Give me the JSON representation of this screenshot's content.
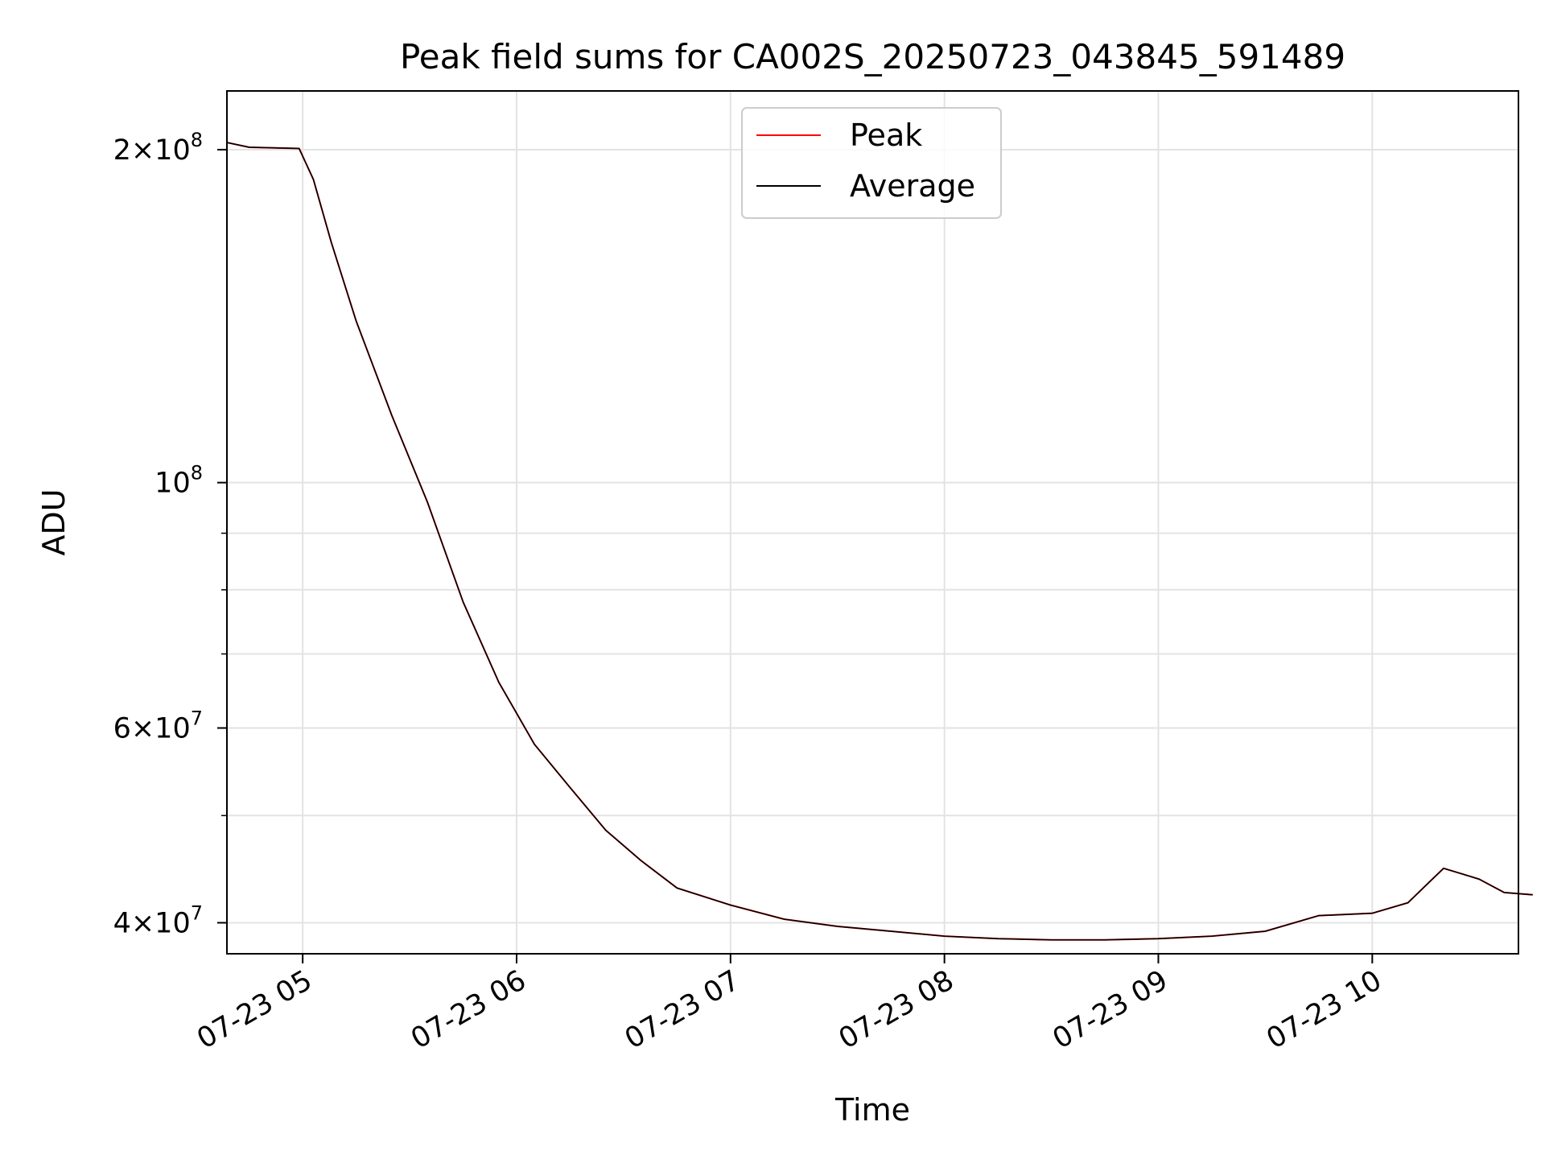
{
  "chart_data": {
    "type": "line",
    "title": "Peak field sums for CA002S_20250723_043845_591489",
    "xlabel": "Time",
    "ylabel": "ADU",
    "yscale": "log",
    "xlim": [
      "2025-07-23 04:38:45",
      "2025-07-23 10:41:00"
    ],
    "ylim": [
      37500000,
      226000000
    ],
    "grid": true,
    "legend_position": "top-center",
    "x_ticks": [
      {
        "t": "2025-07-23 05:00",
        "label": "07-23 05"
      },
      {
        "t": "2025-07-23 06:00",
        "label": "07-23 06"
      },
      {
        "t": "2025-07-23 07:00",
        "label": "07-23 07"
      },
      {
        "t": "2025-07-23 08:00",
        "label": "07-23 08"
      },
      {
        "t": "2025-07-23 09:00",
        "label": "07-23 09"
      },
      {
        "t": "2025-07-23 10:00",
        "label": "07-23 10"
      }
    ],
    "y_major_ticks": [
      {
        "value": 40000000,
        "mantissa": "4",
        "exponent": "7"
      },
      {
        "value": 60000000,
        "mantissa": "6",
        "exponent": "7"
      },
      {
        "value": 100000000,
        "mantissa": "",
        "exponent": "8"
      },
      {
        "value": 200000000,
        "mantissa": "2",
        "exponent": "8"
      }
    ],
    "y_minor_ticks": [
      50000000,
      70000000,
      80000000,
      90000000
    ],
    "series": [
      {
        "name": "Peak",
        "color": "#ff0000",
        "points": [
          [
            "2025-07-23 04:38:45",
            203000000
          ],
          [
            "2025-07-23 04:45",
            201000000
          ],
          [
            "2025-07-23 04:59",
            200500000
          ],
          [
            "2025-07-23 05:03",
            188000000
          ],
          [
            "2025-07-23 05:08",
            165000000
          ],
          [
            "2025-07-23 05:15",
            140000000
          ],
          [
            "2025-07-23 05:25",
            115000000
          ],
          [
            "2025-07-23 05:35",
            96000000
          ],
          [
            "2025-07-23 05:45",
            78000000
          ],
          [
            "2025-07-23 05:55",
            66000000
          ],
          [
            "2025-07-23 06:05",
            58000000
          ],
          [
            "2025-07-23 06:15",
            53000000
          ],
          [
            "2025-07-23 06:25",
            48500000
          ],
          [
            "2025-07-23 06:35",
            45500000
          ],
          [
            "2025-07-23 06:45",
            43000000
          ],
          [
            "2025-07-23 07:00",
            41500000
          ],
          [
            "2025-07-23 07:15",
            40300000
          ],
          [
            "2025-07-23 07:30",
            39700000
          ],
          [
            "2025-07-23 07:45",
            39300000
          ],
          [
            "2025-07-23 08:00",
            38900000
          ],
          [
            "2025-07-23 08:15",
            38700000
          ],
          [
            "2025-07-23 08:30",
            38600000
          ],
          [
            "2025-07-23 08:45",
            38600000
          ],
          [
            "2025-07-23 09:00",
            38700000
          ],
          [
            "2025-07-23 09:15",
            38900000
          ],
          [
            "2025-07-23 09:30",
            39300000
          ],
          [
            "2025-07-23 09:45",
            40600000
          ],
          [
            "2025-07-23 10:00",
            40800000
          ],
          [
            "2025-07-23 10:10",
            41700000
          ],
          [
            "2025-07-23 10:20",
            44800000
          ],
          [
            "2025-07-23 10:25",
            44300000
          ],
          [
            "2025-07-23 10:30",
            43800000
          ],
          [
            "2025-07-23 10:37",
            42600000
          ],
          [
            "2025-07-23 10:45",
            42400000
          ]
        ]
      },
      {
        "name": "Average",
        "color": "#000000",
        "points": [
          [
            "2025-07-23 04:38:45",
            203000000
          ],
          [
            "2025-07-23 04:45",
            201000000
          ],
          [
            "2025-07-23 04:59",
            200500000
          ],
          [
            "2025-07-23 05:03",
            188000000
          ],
          [
            "2025-07-23 05:08",
            165000000
          ],
          [
            "2025-07-23 05:15",
            140000000
          ],
          [
            "2025-07-23 05:25",
            115000000
          ],
          [
            "2025-07-23 05:35",
            96000000
          ],
          [
            "2025-07-23 05:45",
            78000000
          ],
          [
            "2025-07-23 05:55",
            66000000
          ],
          [
            "2025-07-23 06:05",
            58000000
          ],
          [
            "2025-07-23 06:15",
            53000000
          ],
          [
            "2025-07-23 06:25",
            48500000
          ],
          [
            "2025-07-23 06:35",
            45500000
          ],
          [
            "2025-07-23 06:45",
            43000000
          ],
          [
            "2025-07-23 07:00",
            41500000
          ],
          [
            "2025-07-23 07:15",
            40300000
          ],
          [
            "2025-07-23 07:30",
            39700000
          ],
          [
            "2025-07-23 07:45",
            39300000
          ],
          [
            "2025-07-23 08:00",
            38900000
          ],
          [
            "2025-07-23 08:15",
            38700000
          ],
          [
            "2025-07-23 08:30",
            38600000
          ],
          [
            "2025-07-23 08:45",
            38600000
          ],
          [
            "2025-07-23 09:00",
            38700000
          ],
          [
            "2025-07-23 09:15",
            38900000
          ],
          [
            "2025-07-23 09:30",
            39300000
          ],
          [
            "2025-07-23 09:45",
            40600000
          ],
          [
            "2025-07-23 10:00",
            40800000
          ],
          [
            "2025-07-23 10:10",
            41700000
          ],
          [
            "2025-07-23 10:20",
            44800000
          ],
          [
            "2025-07-23 10:25",
            44300000
          ],
          [
            "2025-07-23 10:30",
            43800000
          ],
          [
            "2025-07-23 10:37",
            42600000
          ],
          [
            "2025-07-23 10:45",
            42400000
          ]
        ]
      }
    ]
  }
}
